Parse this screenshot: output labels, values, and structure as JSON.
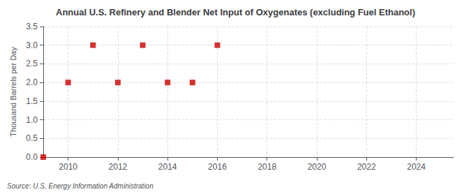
{
  "chart_data": {
    "type": "scatter",
    "title": "Annual U.S. Refinery and Blender Net Input of Oxygenates (excluding Fuel Ethanol)",
    "ylabel": "Thousand Barrels per Day",
    "annotations": [
      "Source: U.S. Energy Information Administration"
    ],
    "x": [
      2009,
      2010,
      2011,
      2012,
      2013,
      2014,
      2015,
      2016
    ],
    "values": [
      0.0,
      2.0,
      3.0,
      2.0,
      3.0,
      2.0,
      2.0,
      3.0
    ],
    "color": "#cc0000",
    "marker": "square",
    "xlim": [
      2009.0,
      2025.5
    ],
    "ylim": [
      0.0,
      3.5
    ],
    "xticks": [
      2010,
      2012,
      2014,
      2016,
      2018,
      2020,
      2022,
      2024
    ],
    "yticks": [
      {
        "value": 0.0,
        "label": "0.0"
      },
      {
        "value": 0.5,
        "label": "0.5"
      },
      {
        "value": 1.0,
        "label": "1.0"
      },
      {
        "value": 1.5,
        "label": "1.5"
      },
      {
        "value": 2.0,
        "label": "2.0"
      },
      {
        "value": 2.5,
        "label": "2.5"
      },
      {
        "value": 3.0,
        "label": "3.0"
      },
      {
        "value": 3.5,
        "label": "3.5"
      }
    ],
    "grid": true
  }
}
